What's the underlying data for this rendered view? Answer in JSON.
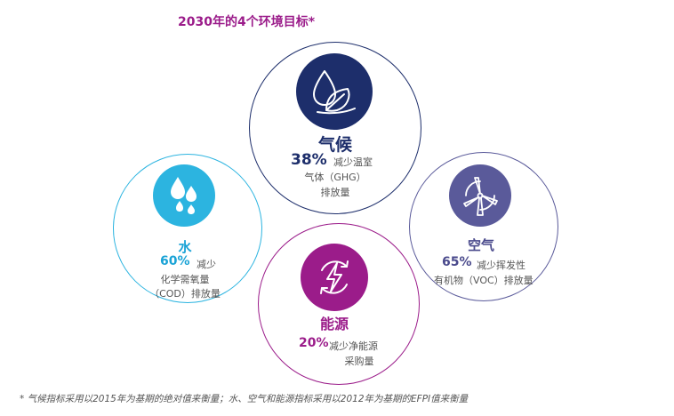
{
  "title": "2030年的4个环境目标*",
  "goals": {
    "climate": {
      "name": "气候",
      "percent": "38%",
      "desc_line1": "减少温室",
      "desc_line2": "气体（GHG）",
      "desc_line3": "排放量",
      "icon": "leaves-icon",
      "color": "#1d2e6b"
    },
    "water": {
      "name": "水",
      "percent": "60%",
      "desc_line1": "减少",
      "desc_line2": "化学需氧量",
      "desc_line3": "（COD）排放量",
      "icon": "water-drops-icon",
      "color": "#2cb4e0"
    },
    "air": {
      "name": "空气",
      "percent": "65%",
      "desc_line1": "减少挥发性",
      "desc_line2": "有机物（VOC）排放量",
      "icon": "wind-turbine-icon",
      "color": "#5a5a9a"
    },
    "energy": {
      "name": "能源",
      "percent": "20%",
      "desc_line1": "减少净能源",
      "desc_line2": "采购量",
      "icon": "lightning-icon",
      "color": "#9b1c8a"
    }
  },
  "footnote": "* 气候指标采用以2015年为基期的绝对值来衡量；水、空气和能源指标采用以2012年为基期的EFPI值来衡量"
}
